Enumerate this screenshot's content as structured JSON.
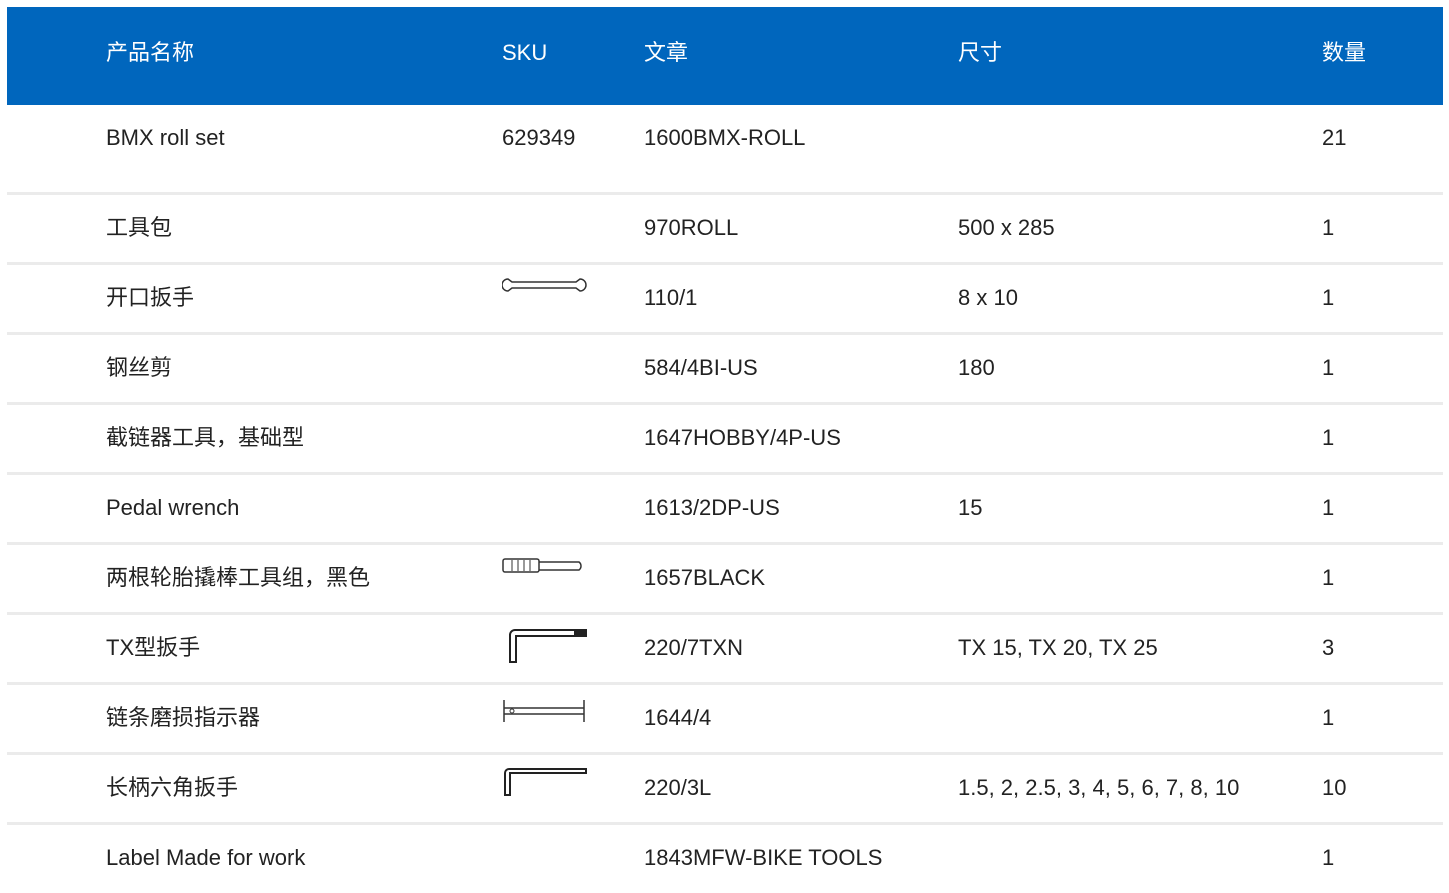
{
  "table": {
    "headers": [
      "产品名称",
      "SKU",
      "文章",
      "尺寸",
      "数量"
    ],
    "rows": [
      {
        "name": "BMX roll set",
        "sku": "629349",
        "article": "1600BMX-ROLL",
        "qty": 21
      },
      {
        "name": "工具包",
        "article": "970ROLL",
        "size": "500 x 285",
        "qty": 1
      },
      {
        "name": "开口扳手",
        "article": "110/1",
        "size": "8 x 10",
        "qty": 1
      },
      {
        "name": "钢丝剪",
        "article": "584/4BI-US",
        "size": "180",
        "qty": 1
      },
      {
        "name": "截链器工具，基础型",
        "article": "1647HOBBY/4P-US",
        "qty": 1
      },
      {
        "name": "Pedal wrench",
        "article": "1613/2DP-US",
        "size": "15",
        "qty": 1
      },
      {
        "name": "两根轮胎撬棒工具组，黑色",
        "article": "1657BLACK",
        "qty": 1
      },
      {
        "name": "TX型扳手",
        "article": "220/7TXN",
        "size": "TX 15, TX 20, TX 25",
        "qty": 3
      },
      {
        "name": "链条磨损指示器",
        "article": "1644/4",
        "qty": 1
      },
      {
        "name": "长柄六角扳手",
        "article": "220/3L",
        "size": "1.5, 2, 2.5, 3, 4, 5, 6, 7, 8, 10",
        "qty": 10
      },
      {
        "name": "Label Made for work",
        "article": "1843MFW-BIKE TOOLS",
        "qty": 1
      }
    ]
  }
}
